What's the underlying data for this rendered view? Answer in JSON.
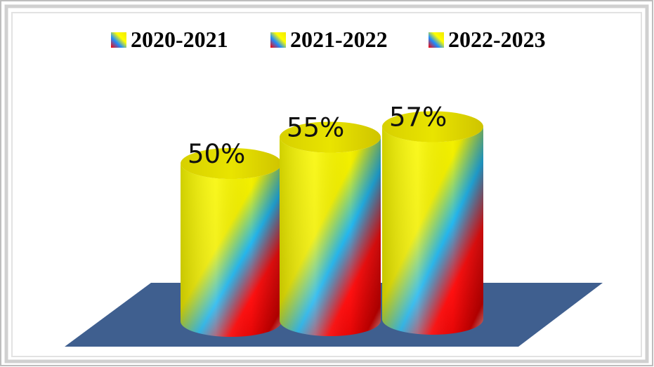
{
  "chart_data": {
    "type": "bar",
    "style": "3d-cylinder",
    "categories": [
      "2020-2021",
      "2021-2022",
      "2022-2023"
    ],
    "values": [
      50,
      55,
      57
    ],
    "value_labels": [
      "50%",
      "55%",
      "57%"
    ],
    "unit": "%",
    "legend": {
      "position": "top",
      "entries": [
        "2020-2021",
        "2021-2022",
        "2022-2023"
      ]
    },
    "title": "",
    "xlabel": "",
    "ylabel": "",
    "ylim": [
      0,
      60
    ],
    "grid": false,
    "axes_visible": false
  },
  "colors": {
    "floor": "#3f5f8f",
    "gradient": [
      "#ffff00",
      "#f5f000",
      "#00b7ff",
      "#ff0000",
      "#c00000"
    ],
    "frame_outer": "#b8b8b8",
    "frame_inner": "#d4d4d4"
  }
}
